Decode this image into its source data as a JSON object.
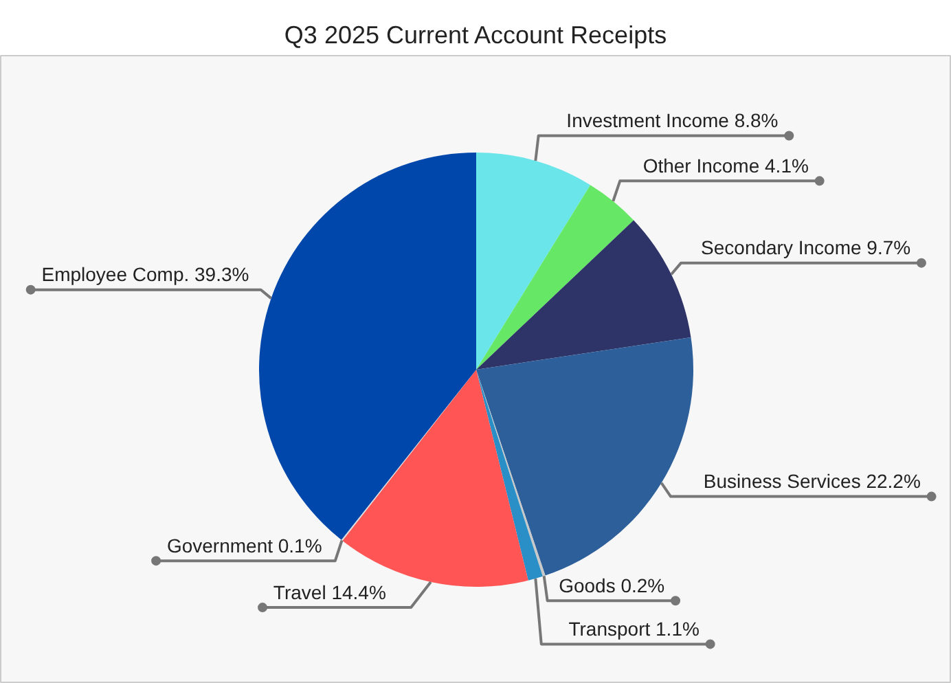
{
  "chart_data": {
    "type": "pie",
    "title": "Q3 2025 Current Account Receipts",
    "categories": [
      "Investment Income",
      "Other Income",
      "Secondary Income",
      "Business Services",
      "Goods",
      "Transport",
      "Travel",
      "Government",
      "Employee Comp."
    ],
    "values": [
      8.8,
      4.1,
      9.7,
      22.2,
      0.2,
      1.1,
      14.4,
      0.1,
      39.3
    ],
    "value_labels": [
      "8.8%",
      "4.1%",
      "9.7%",
      "22.2%",
      "0.2%",
      "1.1%",
      "14.4%",
      "0.1%",
      "39.3%"
    ],
    "colors": [
      "#6ae5ea",
      "#66e866",
      "#2e3368",
      "#2d5f9a",
      "#c8c8c8",
      "#2a8fc7",
      "#ff5555",
      "#dddddd",
      "#0047ab"
    ]
  }
}
